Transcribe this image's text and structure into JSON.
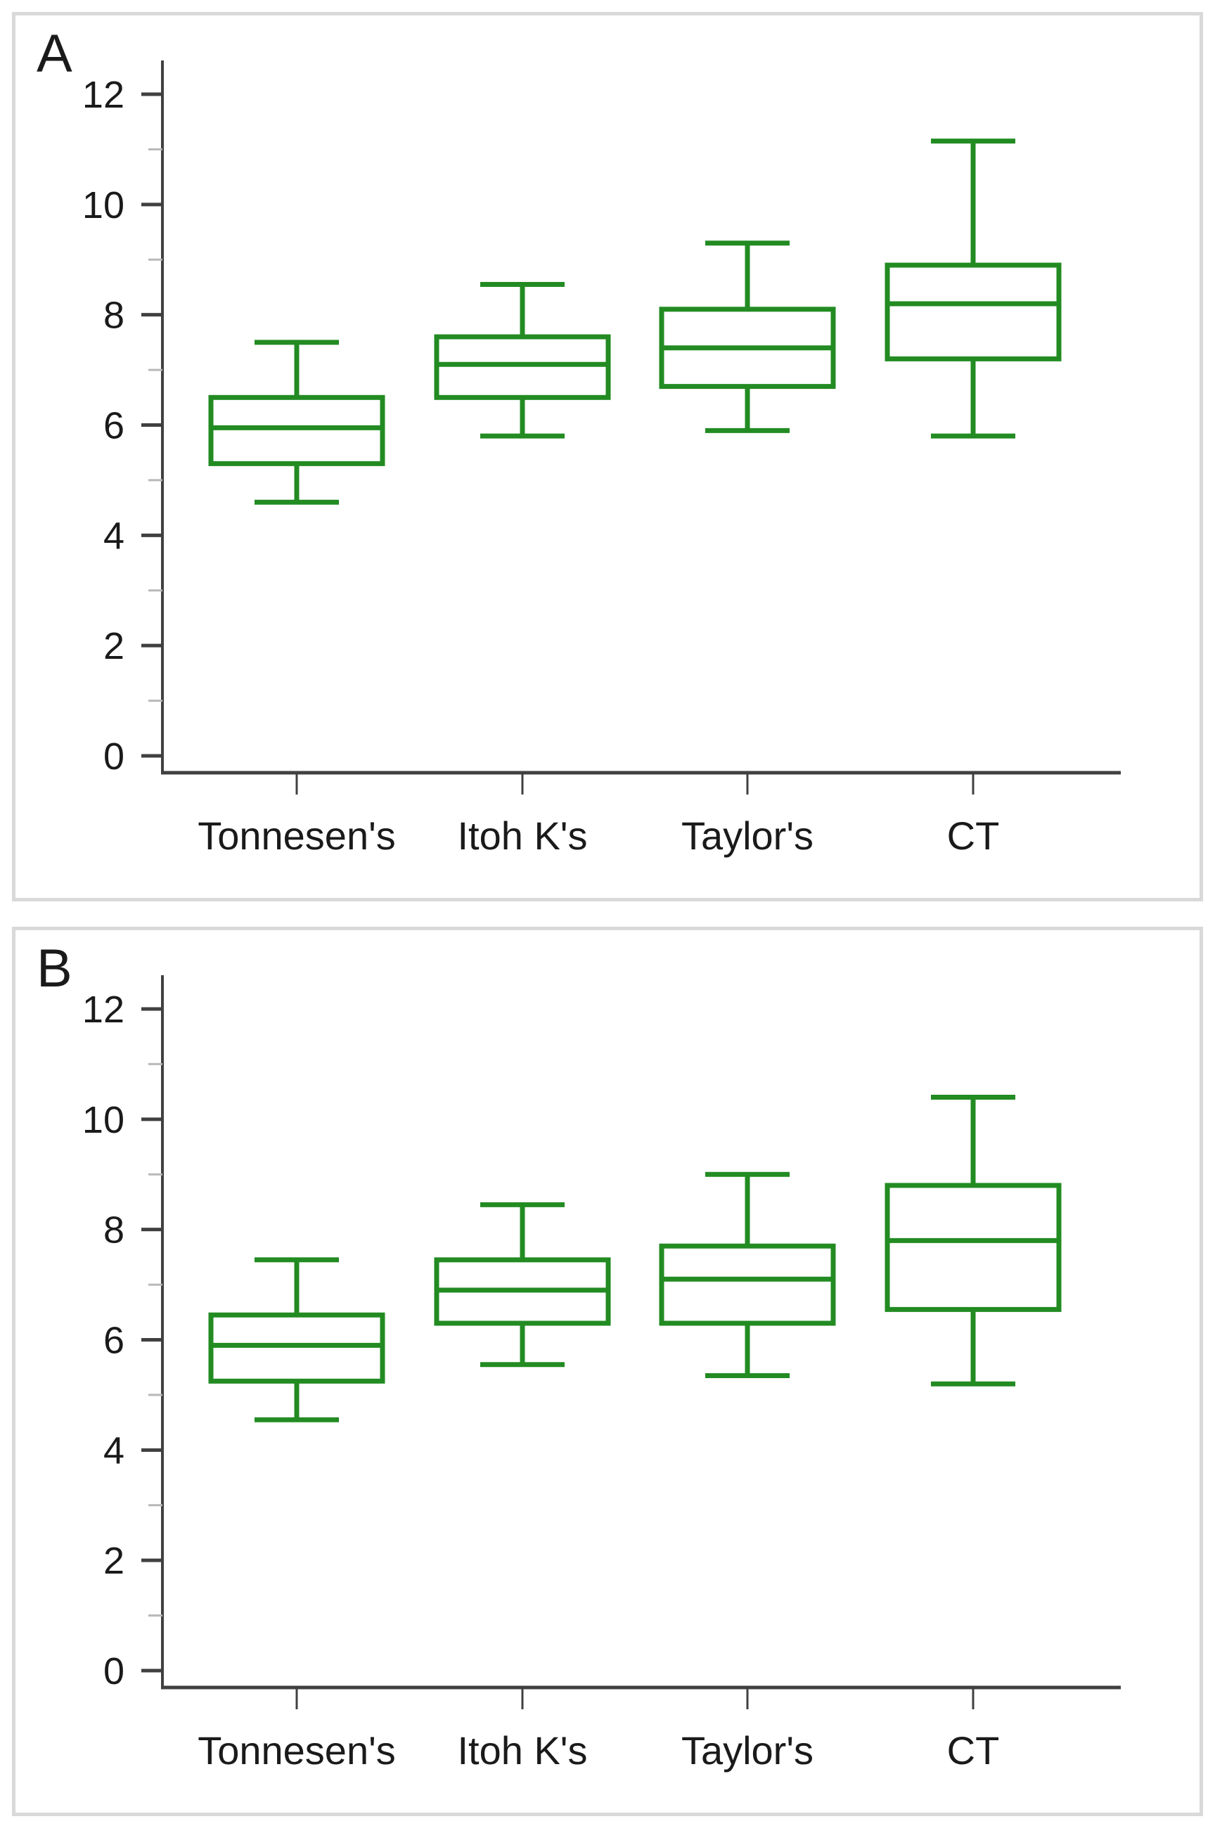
{
  "page": {
    "background": "#ffffff",
    "panel_border_color": "#d9d9d9"
  },
  "panels": [
    {
      "label": "A"
    },
    {
      "label": "B"
    }
  ],
  "chart_data": [
    {
      "type": "boxplot",
      "panel_label": "A",
      "title": "",
      "xlabel": "",
      "ylabel": "",
      "categories": [
        "Tonnesen's",
        "Itoh K's",
        "Taylor's",
        "CT"
      ],
      "series": [
        {
          "name": "Tonnesen's",
          "min": 4.6,
          "q1": 5.3,
          "median": 5.95,
          "q3": 6.5,
          "max": 7.5
        },
        {
          "name": "Itoh K's",
          "min": 5.8,
          "q1": 6.5,
          "median": 7.1,
          "q3": 7.6,
          "max": 8.55
        },
        {
          "name": "Taylor's",
          "min": 5.9,
          "q1": 6.7,
          "median": 7.4,
          "q3": 8.1,
          "max": 9.3
        },
        {
          "name": "CT",
          "min": 5.8,
          "q1": 7.2,
          "median": 8.2,
          "q3": 8.9,
          "max": 11.15
        }
      ],
      "ylim": [
        -0.35,
        12.55
      ],
      "yticks_major": [
        0,
        2,
        4,
        6,
        8,
        10,
        12
      ],
      "yticks_minor": [
        1,
        3,
        5,
        7,
        9,
        11
      ],
      "grid": false,
      "legend": false,
      "box_color": "#228B22",
      "axis_color": "#404040",
      "minor_tick_color": "#b8b8b8",
      "label_color": "#1a1a1a"
    },
    {
      "type": "boxplot",
      "panel_label": "B",
      "title": "",
      "xlabel": "",
      "ylabel": "",
      "categories": [
        "Tonnesen's",
        "Itoh K's",
        "Taylor's",
        "CT"
      ],
      "series": [
        {
          "name": "Tonnesen's",
          "min": 4.55,
          "q1": 5.25,
          "median": 5.9,
          "q3": 6.45,
          "max": 7.45
        },
        {
          "name": "Itoh K's",
          "min": 5.55,
          "q1": 6.3,
          "median": 6.9,
          "q3": 7.45,
          "max": 8.45
        },
        {
          "name": "Taylor's",
          "min": 5.35,
          "q1": 6.3,
          "median": 7.1,
          "q3": 7.7,
          "max": 9.0
        },
        {
          "name": "CT",
          "min": 5.2,
          "q1": 6.55,
          "median": 7.8,
          "q3": 8.8,
          "max": 10.4
        }
      ],
      "ylim": [
        -0.35,
        12.55
      ],
      "yticks_major": [
        0,
        2,
        4,
        6,
        8,
        10,
        12
      ],
      "yticks_minor": [
        1,
        3,
        5,
        7,
        9,
        11
      ],
      "grid": false,
      "legend": false,
      "box_color": "#228B22",
      "axis_color": "#404040",
      "minor_tick_color": "#b8b8b8",
      "label_color": "#1a1a1a"
    }
  ]
}
